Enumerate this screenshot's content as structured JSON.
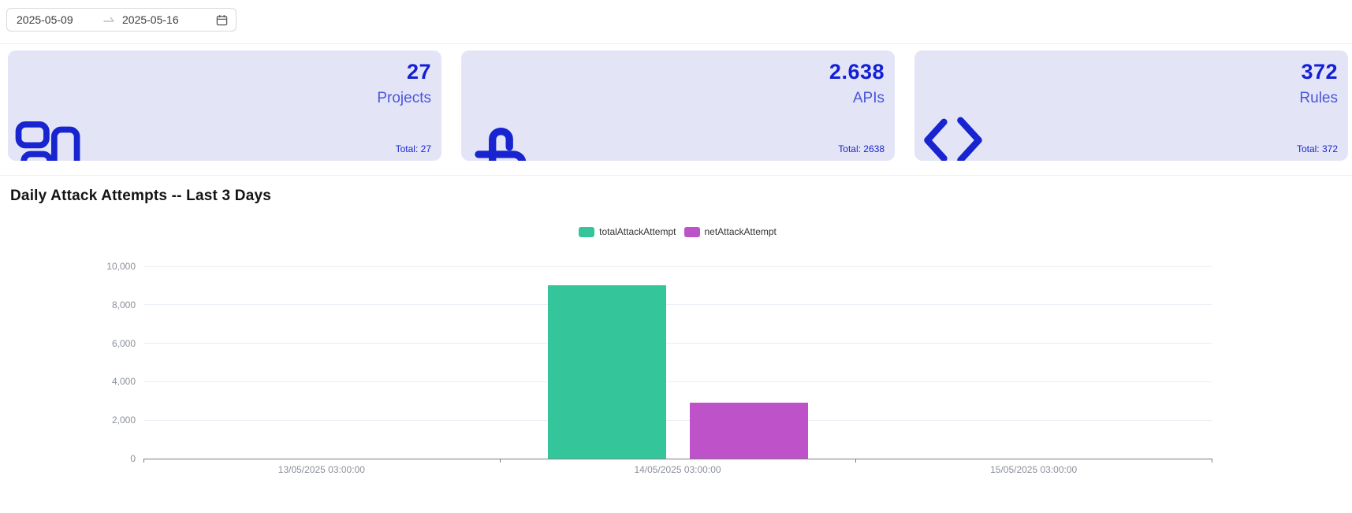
{
  "date_range": {
    "start": "2025-05-09",
    "end": "2025-05-16"
  },
  "cards": [
    {
      "value": "27",
      "label": "Projects",
      "total": "Total: 27",
      "icon": "layout-grid-icon"
    },
    {
      "value": "2.638",
      "label": "APIs",
      "total": "Total: 2638",
      "icon": "api-hooks-icon"
    },
    {
      "value": "372",
      "label": "Rules",
      "total": "Total: 372",
      "icon": "code-brackets-icon"
    }
  ],
  "section": {
    "title": "Daily Attack Attempts -- Last 3 Days"
  },
  "chart_data": {
    "type": "bar",
    "title": "Daily Attack Attempts -- Last 3 Days",
    "categories": [
      "13/05/2025 03:00:00",
      "14/05/2025 03:00:00",
      "15/05/2025 03:00:00"
    ],
    "series": [
      {
        "name": "totalAttackAttempt",
        "color": "#35c59b",
        "values": [
          0,
          9000,
          0
        ]
      },
      {
        "name": "netAttackAttempt",
        "color": "#be52c8",
        "values": [
          0,
          2900,
          0
        ]
      }
    ],
    "xlabel": "",
    "ylabel": "",
    "ylim": [
      0,
      10000
    ],
    "yticks": [
      0,
      2000,
      4000,
      6000,
      8000,
      10000
    ],
    "ytick_labels": [
      "0",
      "2,000",
      "4,000",
      "6,000",
      "8,000",
      "10,000"
    ],
    "grid": true,
    "legend_position": "top-center"
  },
  "colors": {
    "card_background": "#e3e5f7",
    "card_accent_blue": "#131fd4",
    "card_label_blue": "#4a55dd",
    "icon_blue": "#1724cf",
    "axis_label_gray": "#8c909b"
  }
}
